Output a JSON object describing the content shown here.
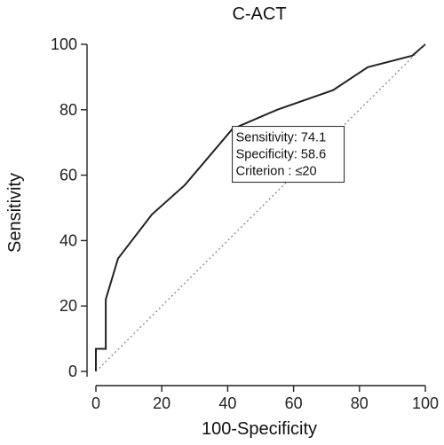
{
  "chart_data": {
    "type": "line",
    "title": "C-ACT",
    "xlabel": "100-Specificity",
    "ylabel": "Sensitivity",
    "xlim": [
      0,
      100
    ],
    "ylim": [
      0,
      100
    ],
    "xticks": [
      0,
      20,
      40,
      60,
      80,
      100
    ],
    "yticks": [
      0,
      20,
      40,
      60,
      80,
      100
    ],
    "grid": false,
    "series": [
      {
        "style": "solid",
        "color": "#222222",
        "x": [
          0,
          0,
          3,
          3,
          6.7,
          17,
          27,
          41.4,
          55,
          72,
          82.5,
          96,
          100
        ],
        "y": [
          0,
          6.9,
          6.9,
          22,
          34.5,
          48,
          57,
          74.1,
          80,
          86,
          93,
          96.5,
          100
        ]
      },
      {
        "style": "dotted",
        "color": "#666666",
        "x": [
          0,
          100
        ],
        "y": [
          0,
          100
        ]
      }
    ],
    "annotation": {
      "lines": [
        "Sensitivity: 74.1",
        "Specificity: 58.6",
        "Criterion : ≤20"
      ],
      "x": 41.4,
      "y": 74.1
    }
  }
}
